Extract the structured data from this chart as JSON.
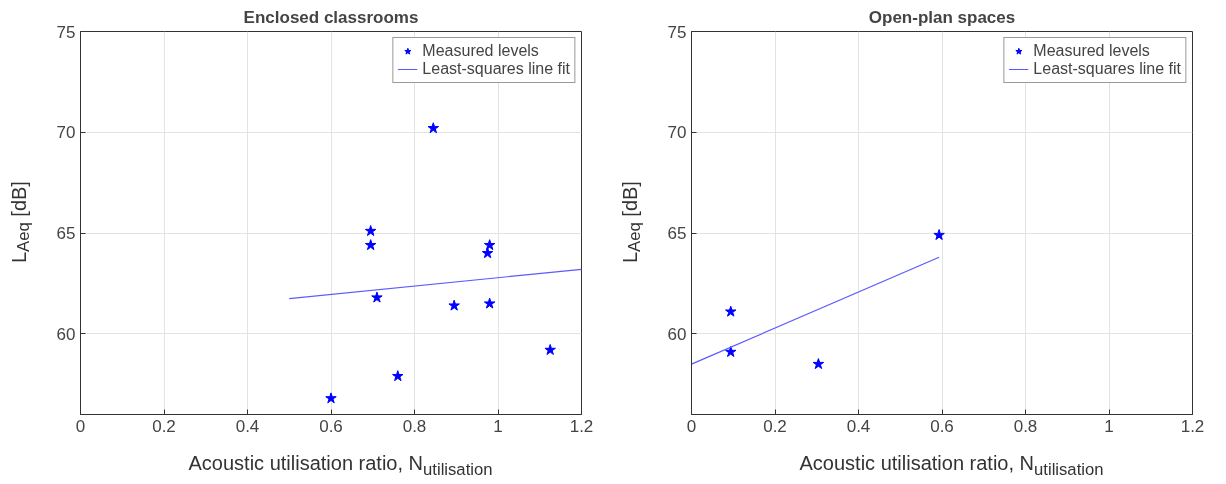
{
  "chart_data": [
    {
      "type": "scatter",
      "title": "Enclosed classrooms",
      "xlabel": "Acoustic utilisation ratio, N$_{utilisation}$",
      "ylabel": "L$_{Aeq}$ [dB]",
      "xlim": [
        0,
        1.2
      ],
      "ylim": [
        56,
        75
      ],
      "xticks": [
        0,
        0.2,
        0.4,
        0.6,
        0.8,
        1,
        1.2
      ],
      "yticks": [
        60,
        65,
        70,
        75
      ],
      "grid": true,
      "legend": "top right",
      "series": [
        {
          "name": "Measured levels",
          "marker": "star",
          "color": "#0000ff",
          "x": [
            0.6,
            0.695,
            0.695,
            0.71,
            0.76,
            0.845,
            0.895,
            0.975,
            0.98,
            0.98,
            1.125
          ],
          "values": [
            56.8,
            65.1,
            64.4,
            61.8,
            57.9,
            70.2,
            61.4,
            64.0,
            64.4,
            61.5,
            59.2
          ]
        },
        {
          "name": "Least-squares line fit",
          "type": "line",
          "marker": "none",
          "color": "#5a5aff",
          "x": [
            0.5,
            1.2
          ],
          "values": [
            61.75,
            63.2
          ]
        }
      ]
    },
    {
      "type": "scatter",
      "title": "Open-plan spaces",
      "xlabel": "Acoustic utilisation ratio, N$_{utilisation}$",
      "ylabel": "L$_{Aeq}$ [dB]",
      "xlim": [
        0,
        1.2
      ],
      "ylim": [
        56,
        75
      ],
      "xticks": [
        0,
        0.2,
        0.4,
        0.6,
        0.8,
        1,
        1.2
      ],
      "yticks": [
        60,
        65,
        70,
        75
      ],
      "grid": true,
      "legend": "top right",
      "series": [
        {
          "name": "Measured levels",
          "marker": "star",
          "color": "#0000ff",
          "x": [
            0.094,
            0.094,
            0.304,
            0.593
          ],
          "values": [
            61.1,
            59.1,
            58.5,
            64.9
          ]
        },
        {
          "name": "Least-squares line fit",
          "type": "line",
          "marker": "none",
          "color": "#5a5aff",
          "x": [
            0,
            0.593
          ],
          "values": [
            58.5,
            63.8
          ]
        }
      ]
    }
  ]
}
